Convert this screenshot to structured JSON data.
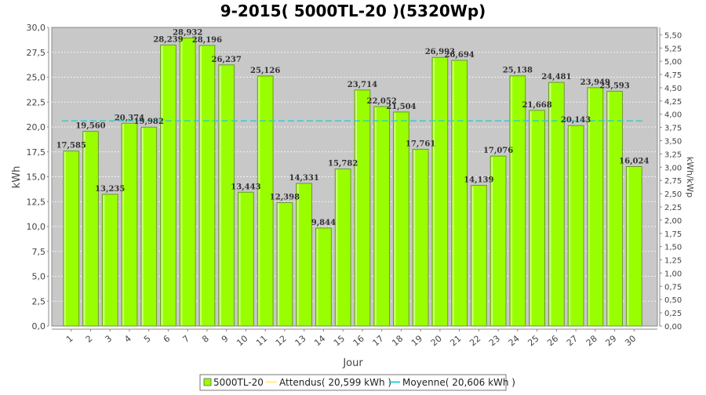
{
  "chart_data": {
    "type": "bar",
    "title": "9-2015( 5000TL-20 )(5320Wp)",
    "xlabel": "Jour",
    "ylabel": "kWh",
    "y2label": "kWh/kWp",
    "categories": [
      "1",
      "2",
      "3",
      "4",
      "5",
      "6",
      "7",
      "8",
      "9",
      "10",
      "11",
      "12",
      "13",
      "14",
      "15",
      "16",
      "17",
      "18",
      "19",
      "20",
      "21",
      "22",
      "23",
      "24",
      "25",
      "26",
      "27",
      "28",
      "29",
      "30"
    ],
    "series": [
      {
        "name": "5000TL-20",
        "values": [
          17.585,
          19.56,
          13.235,
          20.374,
          19.982,
          28.239,
          28.932,
          28.196,
          26.237,
          13.443,
          25.126,
          12.398,
          14.331,
          9.844,
          15.782,
          23.714,
          22.052,
          21.504,
          17.761,
          26.993,
          26.694,
          14.139,
          17.076,
          25.138,
          21.668,
          24.481,
          20.143,
          23.949,
          23.593,
          16.024
        ],
        "labels": [
          "17,585",
          "19,560",
          "13,235",
          "20,374",
          "19,982",
          "28,239",
          "28,932",
          "28,196",
          "26,237",
          "13,443",
          "25,126",
          "12,398",
          "14,331",
          "9,844",
          "15,782",
          "23,714",
          "22,052",
          "21,504",
          "17,761",
          "26,993",
          "26,694",
          "14,139",
          "17,076",
          "25,138",
          "21,668",
          "24,481",
          "20,143",
          "23,949",
          "23,593",
          "16,024"
        ],
        "color": "#99ff00"
      }
    ],
    "average": {
      "value": 20.606,
      "color": "#33cccc"
    },
    "ylim": [
      0,
      30
    ],
    "y_ticks": [
      "0,0",
      "2,5",
      "5,0",
      "7,5",
      "10,0",
      "12,5",
      "15,0",
      "17,5",
      "20,0",
      "22,5",
      "25,0",
      "27,5",
      "30,0"
    ],
    "y2lim": [
      0,
      5.639
    ],
    "y2_ticks": [
      "0,00",
      "0,25",
      "0,50",
      "0,75",
      "1,00",
      "1,25",
      "1,50",
      "1,75",
      "2,00",
      "2,25",
      "2,50",
      "2,75",
      "3,00",
      "3,25",
      "3,50",
      "3,75",
      "4,00",
      "4,25",
      "4,50",
      "4,75",
      "5,00",
      "5,25",
      "5,50"
    ],
    "grid": true,
    "plot_background": "#c8c8c8",
    "legend_position": "bottom",
    "legend": [
      {
        "label": "5000TL-20",
        "color": "#99ff00",
        "kind": "box"
      },
      {
        "label": "Attendus( 20,599 kWh )",
        "color": "#ffee88",
        "kind": "line"
      },
      {
        "label": "Moyenne( 20,606 kWh )",
        "color": "#33cccc",
        "kind": "line"
      }
    ]
  }
}
